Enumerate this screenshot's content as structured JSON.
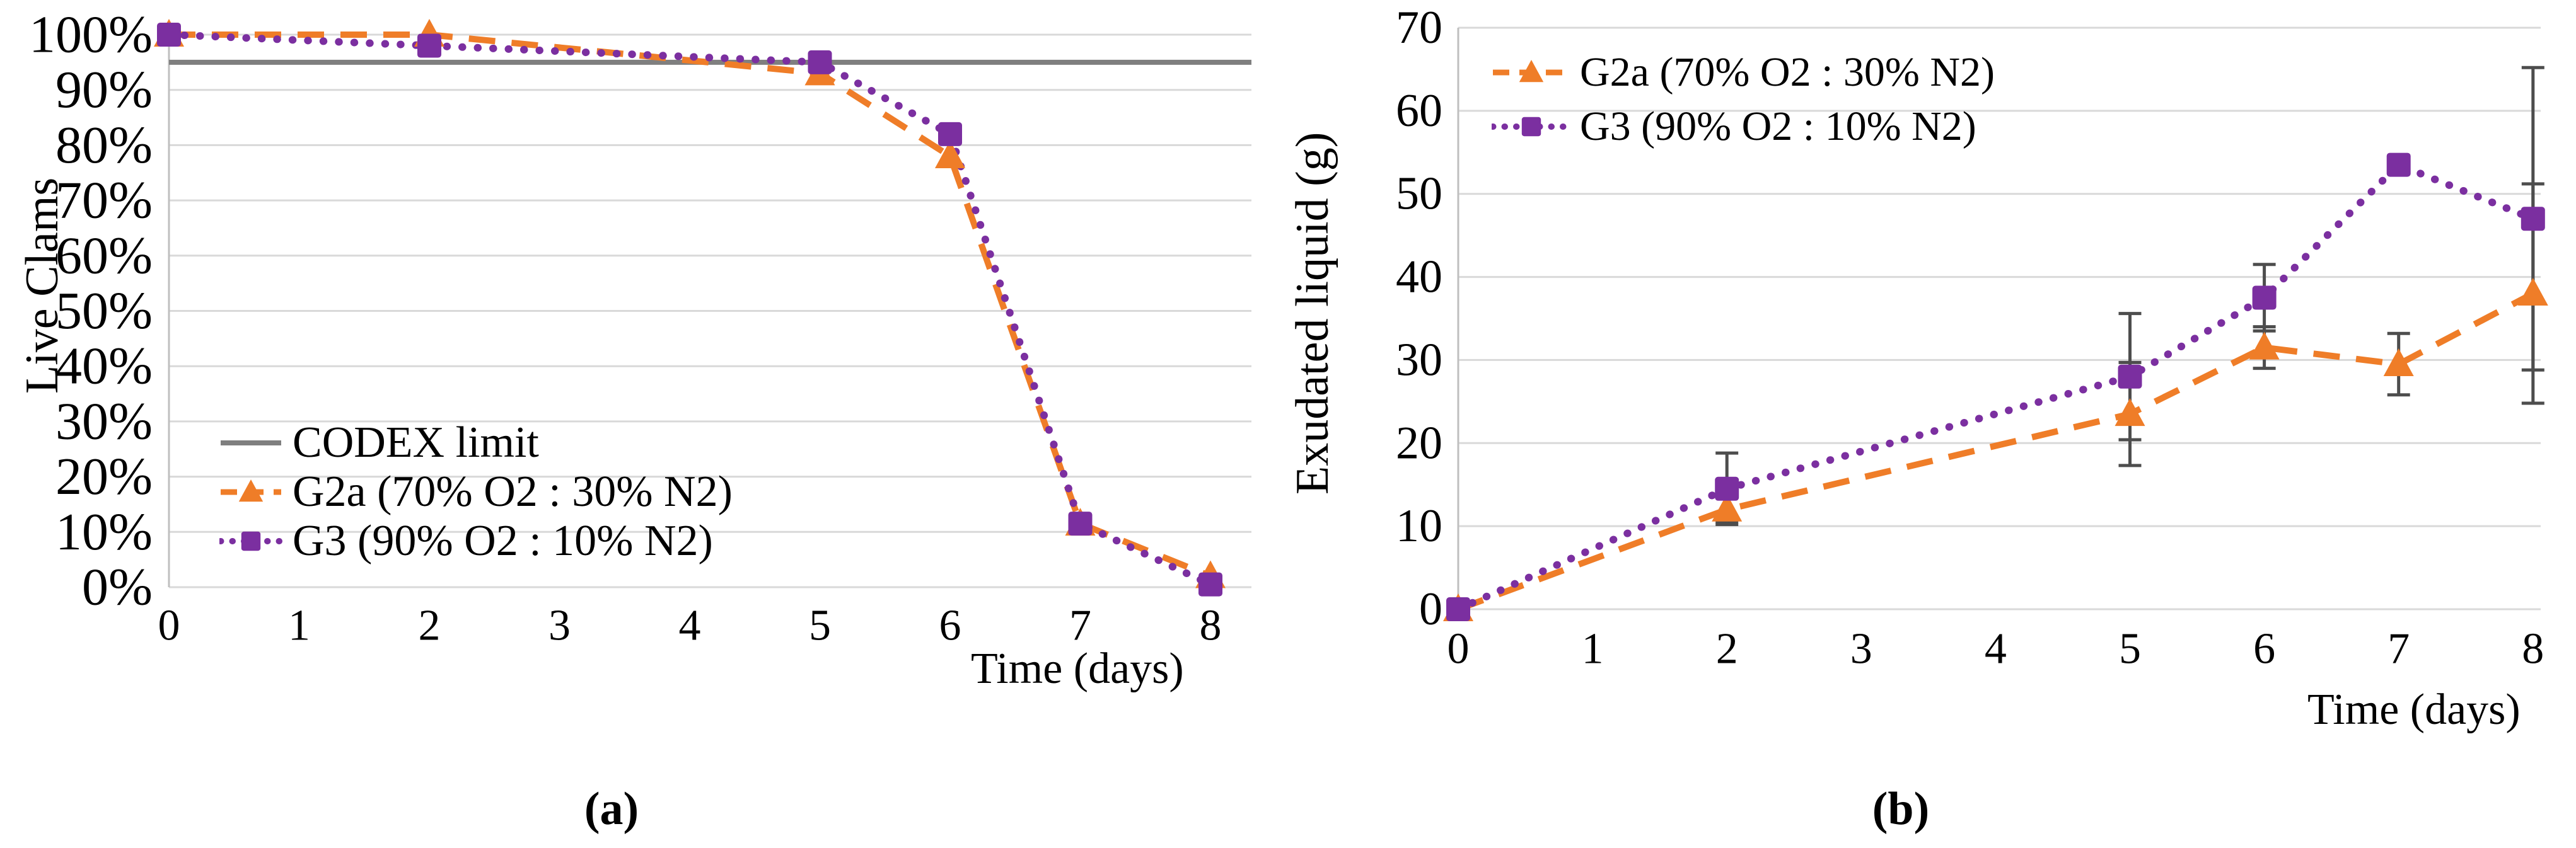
{
  "style": {
    "accent_orange": "#EF7D28",
    "accent_purple": "#7B2FA0",
    "reference_gray": "#7F7F7F",
    "gridline": "#D9D9D9",
    "axis_line": "#BFBFBF",
    "error_bar": "#4D4D4D",
    "background": "#FFFFFF"
  },
  "captions": {
    "a": "(a)",
    "b": "(b)"
  },
  "chart_data": [
    {
      "id": "a",
      "type": "line",
      "title": "",
      "xlabel": "Time (days)",
      "ylabel": "Live Clams",
      "x": [
        0,
        2,
        5,
        6,
        7,
        8
      ],
      "x_ticks": [
        0,
        1,
        2,
        3,
        4,
        5,
        6,
        7,
        8
      ],
      "x_tick_labels": [
        "0",
        "1",
        "2",
        "3",
        "4",
        "5",
        "6",
        "7",
        "8"
      ],
      "xlim": [
        0,
        8.3
      ],
      "ylim": [
        0,
        100
      ],
      "y_ticks": [
        0,
        10,
        20,
        30,
        40,
        50,
        60,
        70,
        80,
        90,
        100
      ],
      "y_tick_labels": [
        "0%",
        "10%",
        "20%",
        "30%",
        "40%",
        "50%",
        "60%",
        "70%",
        "80%",
        "90%",
        "100%"
      ],
      "grid": true,
      "legend_position": "inside-lower-left",
      "reference_line": {
        "label": "CODEX limit",
        "value": 95,
        "color": "#7F7F7F"
      },
      "series": [
        {
          "name": "G2a (70% O2 : 30% N2)",
          "color": "#EF7D28",
          "marker": "triangle",
          "line": "dashed",
          "values": [
            100,
            100,
            93,
            78,
            11.5,
            2
          ]
        },
        {
          "name": "G3 (90% O2 : 10% N2)",
          "color": "#7B2FA0",
          "marker": "square",
          "line": "dotted",
          "values": [
            100,
            98,
            95,
            82,
            11.5,
            0.5
          ]
        }
      ]
    },
    {
      "id": "b",
      "type": "line",
      "title": "",
      "xlabel": "Time (days)",
      "ylabel": "Exudated liquid (g)",
      "x": [
        0,
        2,
        5,
        6,
        7,
        8
      ],
      "x_ticks": [
        0,
        1,
        2,
        3,
        4,
        5,
        6,
        7,
        8
      ],
      "x_tick_labels": [
        "0",
        "1",
        "2",
        "3",
        "4",
        "5",
        "6",
        "7",
        "8"
      ],
      "xlim": [
        0,
        8.3
      ],
      "ylim": [
        0,
        70
      ],
      "y_ticks": [
        0,
        10,
        20,
        30,
        40,
        50,
        60,
        70
      ],
      "y_tick_labels": [
        "0",
        "10",
        "20",
        "30",
        "40",
        "50",
        "60",
        "70"
      ],
      "grid": true,
      "legend_position": "inside-upper-left",
      "series": [
        {
          "name": "G2a (70% O2 : 30% N2)",
          "color": "#EF7D28",
          "marker": "triangle",
          "line": "dashed",
          "values": [
            0,
            12,
            23.5,
            31.5,
            29.5,
            38
          ],
          "errors": [
            0,
            1.5,
            6.2,
            2.5,
            3.7,
            13.2
          ]
        },
        {
          "name": "G3 (90% O2 : 10% N2)",
          "color": "#7B2FA0",
          "marker": "square",
          "line": "dotted",
          "values": [
            0,
            14.5,
            28,
            37.5,
            53.5,
            47
          ],
          "errors": [
            0,
            4.3,
            7.6,
            4,
            0,
            18.2
          ]
        }
      ]
    }
  ]
}
